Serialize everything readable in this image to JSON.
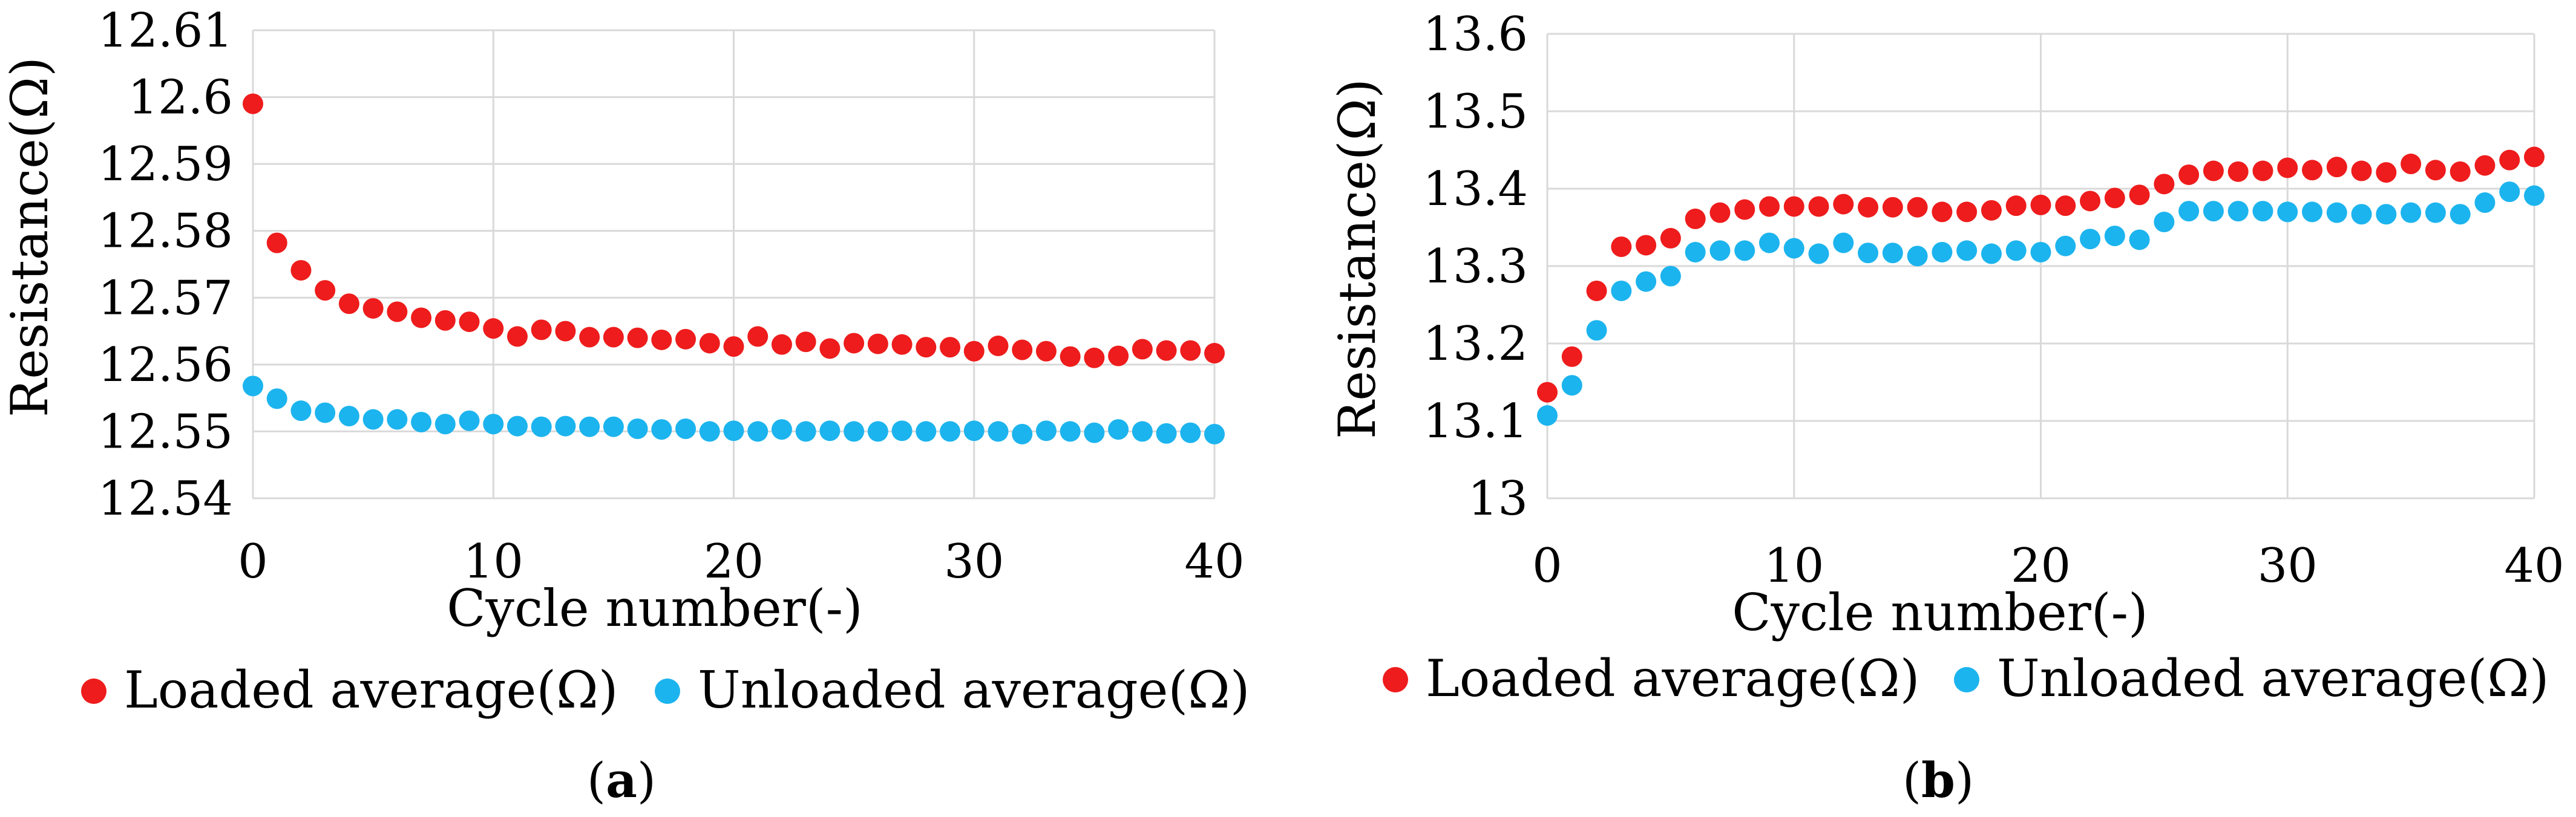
{
  "chart_data": [
    {
      "type": "scatter",
      "panel_label": "a",
      "title": "",
      "xlabel": "Cycle number(-)",
      "ylabel": "Resistance(Ω)",
      "xlim": [
        0,
        40
      ],
      "ylim": [
        12.54,
        12.61
      ],
      "xticks": [
        0,
        10,
        20,
        30,
        40
      ],
      "xtick_labels": [
        "0",
        "10",
        "20",
        "30",
        "40"
      ],
      "yticks": [
        12.54,
        12.55,
        12.56,
        12.57,
        12.58,
        12.59,
        12.6,
        12.61
      ],
      "ytick_labels": [
        "12.54",
        "12.55",
        "12.56",
        "12.57",
        "12.58",
        "12.59",
        "12.6",
        "12.61"
      ],
      "grid": true,
      "legend_position": "bottom",
      "series": [
        {
          "name": "Loaded average(Ω)",
          "color": "#ee1c1c",
          "x": [
            0,
            1,
            2,
            3,
            4,
            5,
            6,
            7,
            8,
            9,
            10,
            11,
            12,
            13,
            14,
            15,
            16,
            17,
            18,
            19,
            20,
            21,
            22,
            23,
            24,
            25,
            26,
            27,
            28,
            29,
            30,
            31,
            32,
            33,
            34,
            35,
            36,
            37,
            38,
            39,
            40
          ],
          "y": [
            12.599,
            12.5782,
            12.5741,
            12.5711,
            12.5691,
            12.5684,
            12.5679,
            12.567,
            12.5666,
            12.5664,
            12.5654,
            12.5642,
            12.5652,
            12.565,
            12.5641,
            12.5641,
            12.564,
            12.5637,
            12.5638,
            12.5632,
            12.5627,
            12.5642,
            12.563,
            12.5634,
            12.5624,
            12.5632,
            12.5631,
            12.563,
            12.5626,
            12.5626,
            12.562,
            12.5628,
            12.5622,
            12.562,
            12.5612,
            12.561,
            12.5613,
            12.5623,
            12.5621,
            12.5621,
            12.5617
          ]
        },
        {
          "name": "Unloaded average(Ω)",
          "color": "#1cb4ee",
          "x": [
            0,
            1,
            2,
            3,
            4,
            5,
            6,
            7,
            8,
            9,
            10,
            11,
            12,
            13,
            14,
            15,
            16,
            17,
            18,
            19,
            20,
            21,
            22,
            23,
            24,
            25,
            26,
            27,
            28,
            29,
            30,
            31,
            32,
            33,
            34,
            35,
            36,
            37,
            38,
            39,
            40
          ],
          "y": [
            12.5568,
            12.5549,
            12.5531,
            12.5528,
            12.5523,
            12.5518,
            12.5518,
            12.5514,
            12.5511,
            12.5516,
            12.5511,
            12.5508,
            12.5507,
            12.5508,
            12.5507,
            12.5507,
            12.5504,
            12.5503,
            12.5504,
            12.55,
            12.5501,
            12.55,
            12.5503,
            12.55,
            12.5501,
            12.55,
            12.55,
            12.5501,
            12.55,
            12.55,
            12.5501,
            12.55,
            12.5496,
            12.5501,
            12.55,
            12.5498,
            12.5503,
            12.55,
            12.5497,
            12.5498,
            12.5496
          ]
        }
      ]
    },
    {
      "type": "scatter",
      "panel_label": "b",
      "title": "",
      "xlabel": "Cycle number(-)",
      "ylabel": "Resistance(Ω)",
      "xlim": [
        0,
        40
      ],
      "ylim": [
        13.0,
        13.6
      ],
      "xticks": [
        0,
        10,
        20,
        30,
        40
      ],
      "xtick_labels": [
        "0",
        "10",
        "20",
        "30",
        "40"
      ],
      "yticks": [
        13.0,
        13.1,
        13.2,
        13.3,
        13.4,
        13.5,
        13.6
      ],
      "ytick_labels": [
        "13",
        "13.1",
        "13.2",
        "13.3",
        "13.4",
        "13.5",
        "13.6"
      ],
      "grid": true,
      "legend_position": "bottom",
      "series": [
        {
          "name": "Loaded average(Ω)",
          "color": "#ee1c1c",
          "x": [
            0,
            1,
            2,
            3,
            4,
            5,
            6,
            7,
            8,
            9,
            10,
            11,
            12,
            13,
            14,
            15,
            16,
            17,
            18,
            19,
            20,
            21,
            22,
            23,
            24,
            25,
            26,
            27,
            28,
            29,
            30,
            31,
            32,
            33,
            34,
            35,
            36,
            37,
            38,
            39,
            40
          ],
          "y": [
            13.137,
            13.183,
            13.268,
            13.325,
            13.327,
            13.336,
            13.361,
            13.369,
            13.373,
            13.377,
            13.377,
            13.377,
            13.38,
            13.376,
            13.376,
            13.376,
            13.37,
            13.37,
            13.372,
            13.378,
            13.379,
            13.378,
            13.384,
            13.388,
            13.392,
            13.406,
            13.418,
            13.423,
            13.422,
            13.423,
            13.427,
            13.424,
            13.428,
            13.423,
            13.421,
            13.432,
            13.424,
            13.422,
            13.43,
            13.437,
            13.441
          ]
        },
        {
          "name": "Unloaded average(Ω)",
          "color": "#1cb4ee",
          "x": [
            0,
            1,
            2,
            3,
            4,
            5,
            6,
            7,
            8,
            9,
            10,
            11,
            12,
            13,
            14,
            15,
            16,
            17,
            18,
            19,
            20,
            21,
            22,
            23,
            24,
            25,
            26,
            27,
            28,
            29,
            30,
            31,
            32,
            33,
            34,
            35,
            36,
            37,
            38,
            39,
            40
          ],
          "y": [
            13.107,
            13.146,
            13.217,
            13.268,
            13.28,
            13.287,
            13.318,
            13.32,
            13.32,
            13.33,
            13.323,
            13.316,
            13.33,
            13.317,
            13.317,
            13.313,
            13.318,
            13.32,
            13.316,
            13.32,
            13.318,
            13.326,
            13.335,
            13.339,
            13.334,
            13.357,
            13.371,
            13.371,
            13.371,
            13.371,
            13.37,
            13.37,
            13.369,
            13.367,
            13.367,
            13.369,
            13.369,
            13.367,
            13.382,
            13.396,
            13.391
          ]
        }
      ]
    }
  ],
  "captions": [
    {
      "open": "(",
      "letter": "a",
      "close": ")"
    },
    {
      "open": "(",
      "letter": "b",
      "close": ")"
    }
  ]
}
